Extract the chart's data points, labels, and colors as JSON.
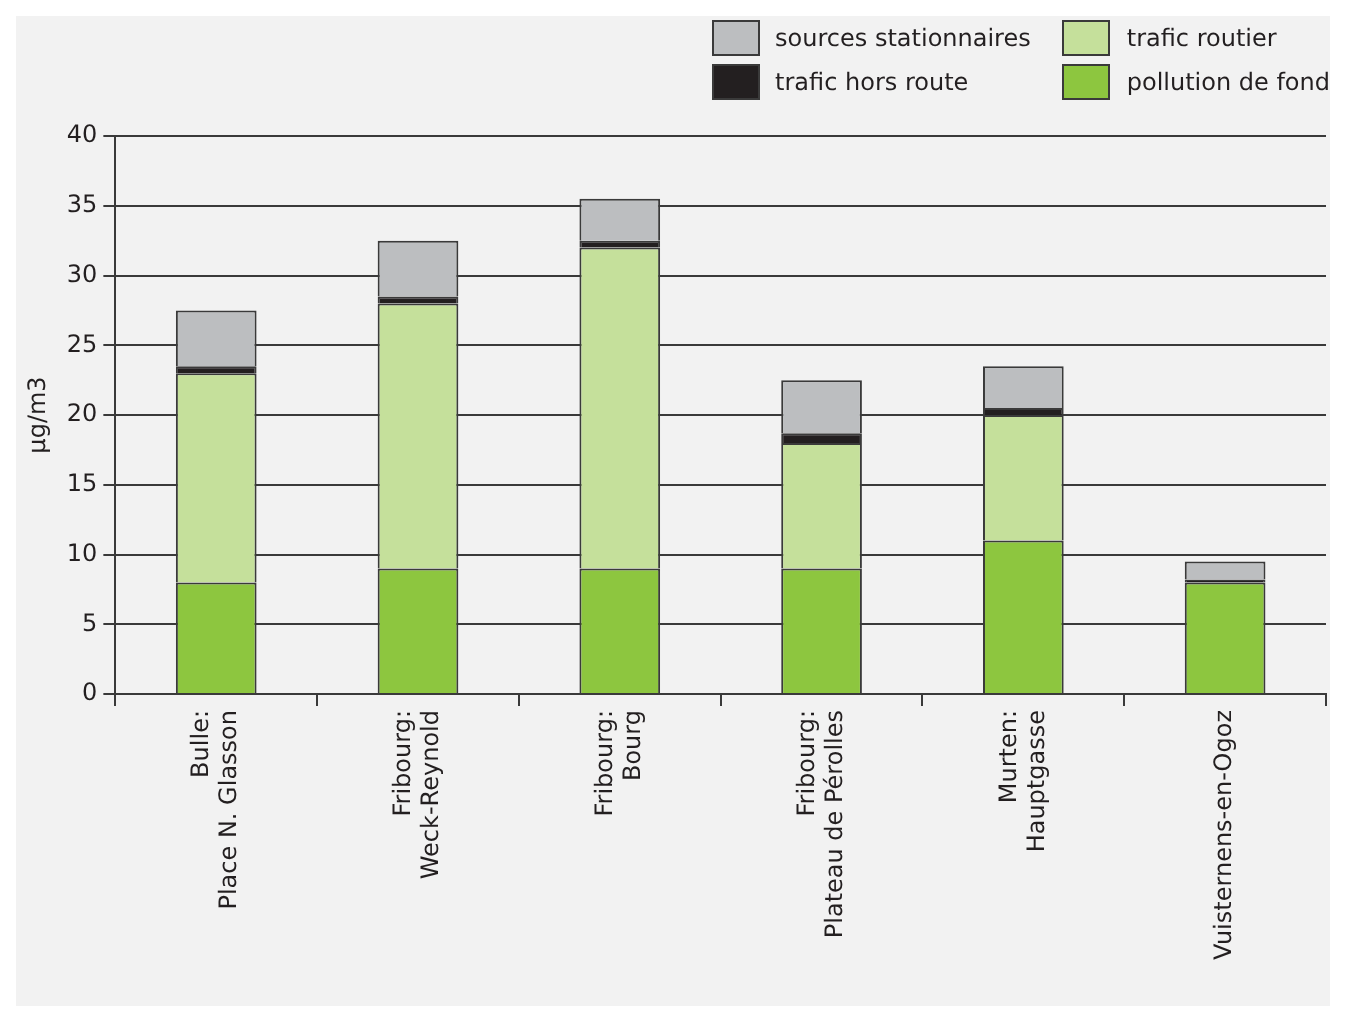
{
  "chart_data": {
    "type": "bar",
    "stacked": true,
    "ylabel": "µg/m3",
    "categories": [
      "Bulle:\nPlace N. Glasson",
      "Fribourg:\nWeck-Reynold",
      "Fribourg:\nBourg",
      "Fribourg:\nPlateau de Pérolles",
      "Murten:\nHauptgasse",
      "Vuisternens-en-Ogoz"
    ],
    "series": [
      {
        "name": "pollution de fond",
        "color": "#8dc63f",
        "values": [
          8,
          9,
          9,
          9,
          11,
          8
        ]
      },
      {
        "name": "trafic routier",
        "color": "#c5e09b",
        "values": [
          15,
          19,
          23,
          9,
          9,
          0
        ]
      },
      {
        "name": "trafic hors route",
        "color": "#231f20",
        "values": [
          0.5,
          0.5,
          0.5,
          0.7,
          0.5,
          0.2
        ]
      },
      {
        "name": "sources stationnaires",
        "color": "#bcbec0",
        "values": [
          4,
          4,
          3,
          3.8,
          3,
          1.3
        ]
      }
    ],
    "ylim": [
      0,
      40
    ],
    "yticks": [
      0,
      5,
      10,
      15,
      20,
      25,
      30,
      35,
      40
    ],
    "grid": "y",
    "legend": "top right"
  }
}
